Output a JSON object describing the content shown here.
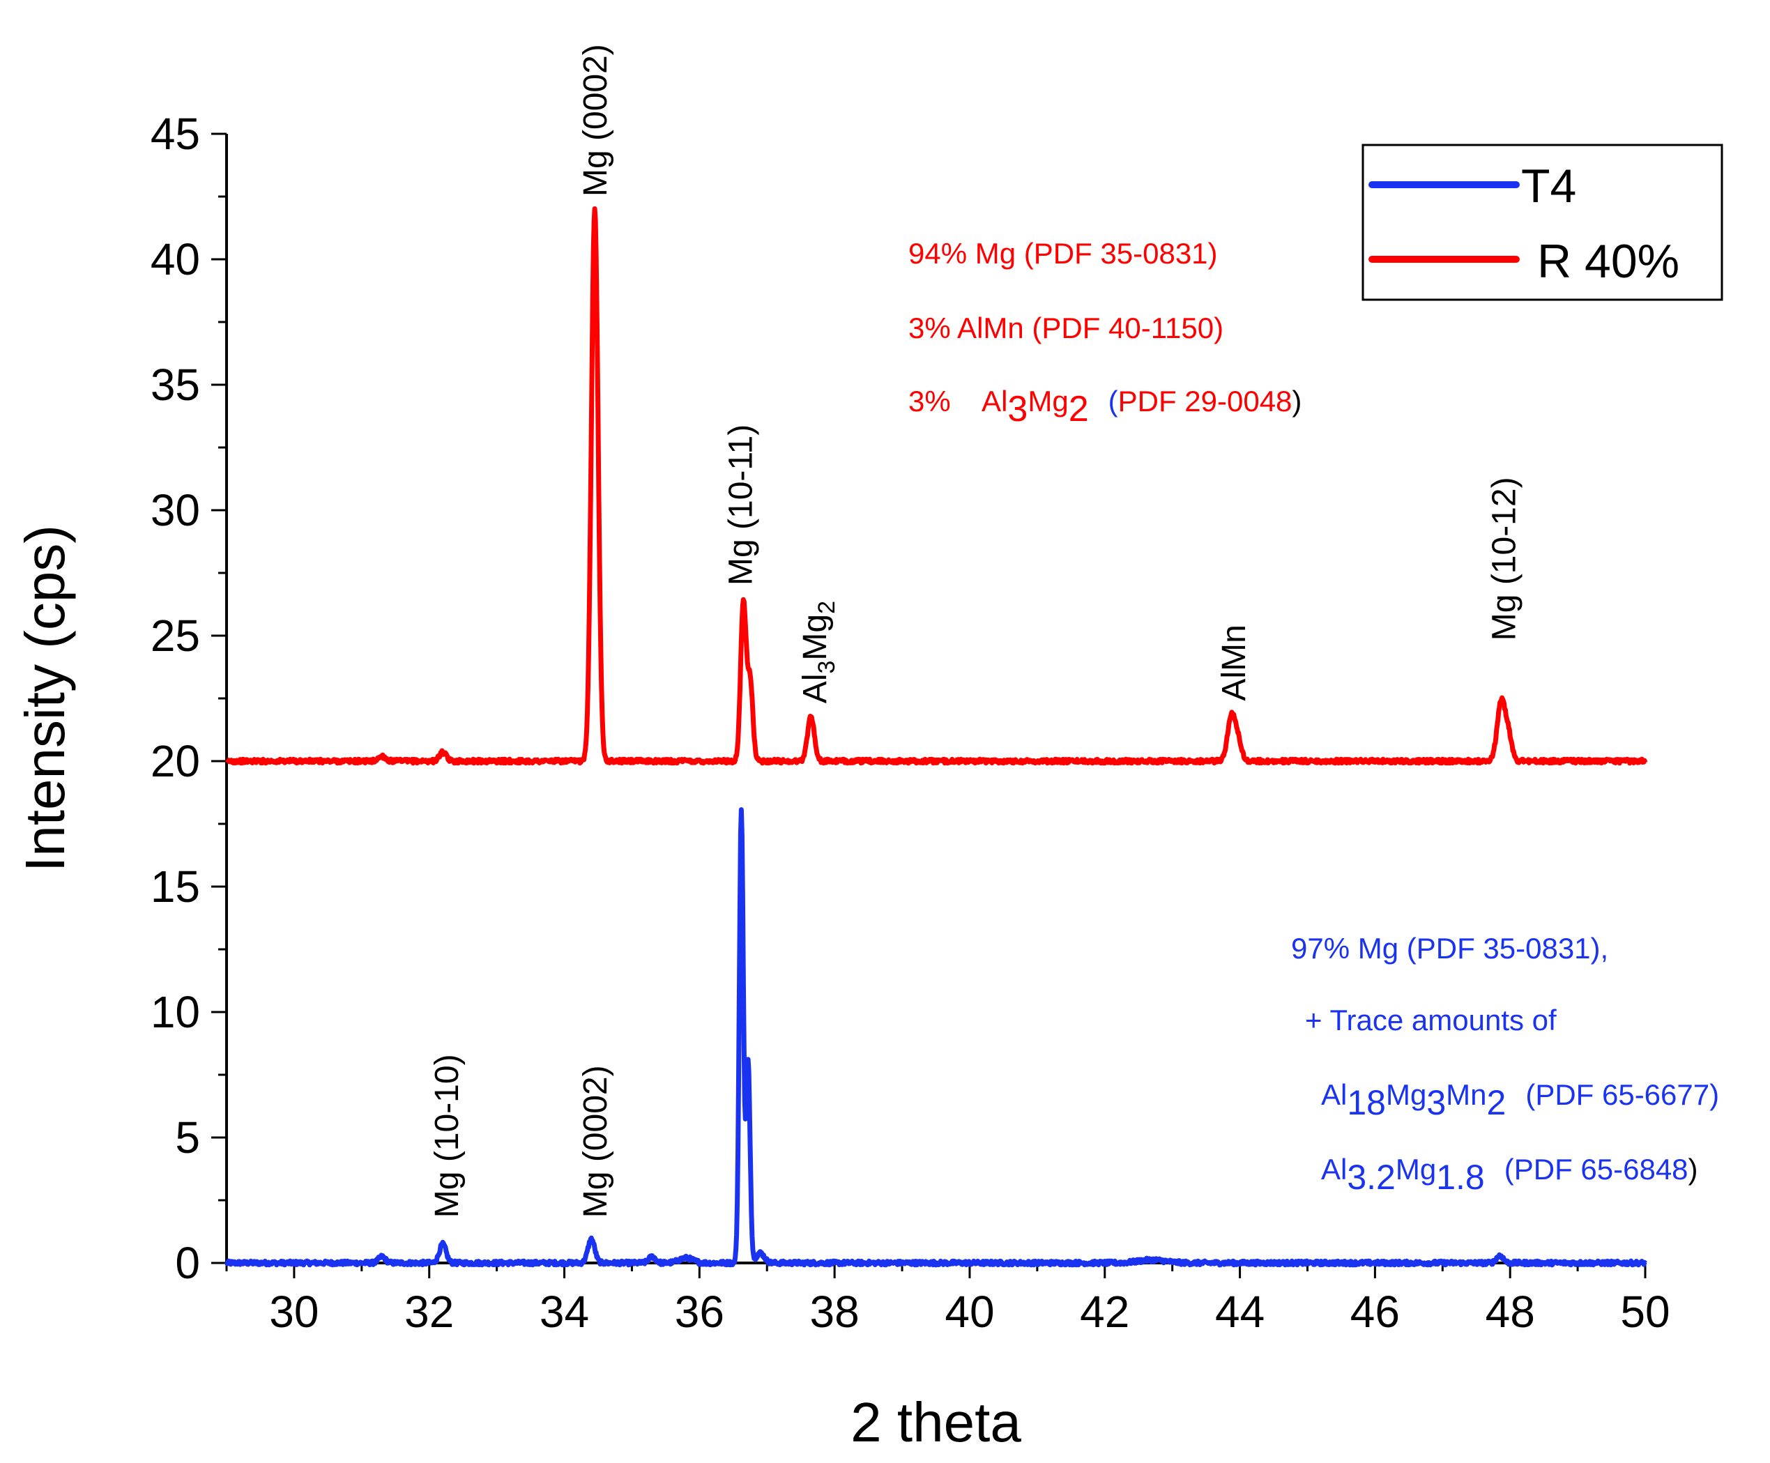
{
  "colors": {
    "T4": "#1a33f0",
    "R40": "#ff0000",
    "axis": "#000000"
  },
  "chart_data": {
    "type": "line",
    "xlabel": "2 theta",
    "ylabel": "Intensity (cps)",
    "xlim": [
      29,
      50
    ],
    "ylim": [
      0,
      45
    ],
    "xticks": [
      "30",
      "32",
      "34",
      "36",
      "38",
      "40",
      "42",
      "44",
      "46",
      "48",
      "50"
    ],
    "yticks": [
      "0",
      "5",
      "10",
      "15",
      "20",
      "25",
      "30",
      "35",
      "40",
      "45"
    ],
    "legend": {
      "position": "top-right",
      "entries": [
        "T4",
        "R 40%"
      ]
    },
    "series": [
      {
        "name": "T4",
        "baseline": 0,
        "x_range": [
          29,
          50
        ],
        "peaks": [
          {
            "x": 31.3,
            "height": 0.25,
            "width": 0.05
          },
          {
            "x": 32.2,
            "height": 0.75,
            "width": 0.05
          },
          {
            "x": 34.4,
            "height": 0.95,
            "width": 0.05
          },
          {
            "x": 35.3,
            "height": 0.25,
            "width": 0.05
          },
          {
            "x": 35.8,
            "height": 0.2,
            "width": 0.1
          },
          {
            "x": 36.62,
            "height": 18.0,
            "width": 0.03
          },
          {
            "x": 36.72,
            "height": 8.0,
            "width": 0.03
          },
          {
            "x": 36.9,
            "height": 0.4,
            "width": 0.06
          },
          {
            "x": 42.7,
            "height": 0.12,
            "width": 0.2
          },
          {
            "x": 47.85,
            "height": 0.3,
            "width": 0.05
          }
        ]
      },
      {
        "name": "R 40%",
        "baseline": 20,
        "x_range": [
          29,
          50
        ],
        "peaks": [
          {
            "x": 31.3,
            "height": 0.2,
            "width": 0.05
          },
          {
            "x": 32.2,
            "height": 0.35,
            "width": 0.05
          },
          {
            "x": 34.45,
            "height": 22.0,
            "width": 0.05
          },
          {
            "x": 36.65,
            "height": 6.3,
            "width": 0.04
          },
          {
            "x": 36.75,
            "height": 3.2,
            "width": 0.04
          },
          {
            "x": 37.65,
            "height": 1.8,
            "width": 0.05
          },
          {
            "x": 43.88,
            "height": 1.85,
            "width": 0.06
          },
          {
            "x": 43.98,
            "height": 0.6,
            "width": 0.05
          },
          {
            "x": 47.87,
            "height": 2.4,
            "width": 0.06
          },
          {
            "x": 47.98,
            "height": 0.9,
            "width": 0.05
          }
        ]
      }
    ],
    "peak_labels": [
      {
        "text": "Mg (0002)",
        "x": 34.45,
        "y": 42.5
      },
      {
        "text": "Mg (10-11)",
        "x": 36.6,
        "y": 27.0
      },
      {
        "text": "AlMn",
        "x": 43.9,
        "y": 22.4
      },
      {
        "text": "Mg (10-12)",
        "x": 47.9,
        "y": 24.8
      },
      {
        "text": "Mg (10-10)",
        "x": 32.25,
        "y": 1.8
      },
      {
        "text": "Mg (0002)",
        "x": 34.45,
        "y": 1.8
      }
    ],
    "formula_peak_label": {
      "base": "Al",
      "sub1": "3",
      "mid": "Mg",
      "sub2": "2",
      "x": 37.7,
      "y": 22.3
    },
    "annotations_red": {
      "line1": "94%  Mg (PDF 35-0831)",
      "line2": "3%    AlMn  (PDF 40-1150)",
      "line3_prefix": "3%    Al",
      "line3_sub1": "3",
      "line3_mid": "Mg",
      "line3_sub2": "2",
      "line3_paren_open": "(",
      "line3_ref": "PDF 29-0048",
      "line3_paren_close": ")"
    },
    "annotations_blue": {
      "line1": "97%  Mg (PDF 35-0831),",
      "line2": "+ Trace amounts of",
      "line3_el1": "Al",
      "line3_n1": "18",
      "line3_el2": "Mg",
      "line3_n2": "3",
      "line3_el3": "Mn",
      "line3_n3": "2",
      "line3_ref": "(PDF 65-6677)",
      "line4_el1": "Al",
      "line4_n1": "3.2",
      "line4_el2": "Mg",
      "line4_n2": "1.8",
      "line4_ref": "(PDF 65-6848",
      "line4_close": ")"
    }
  }
}
